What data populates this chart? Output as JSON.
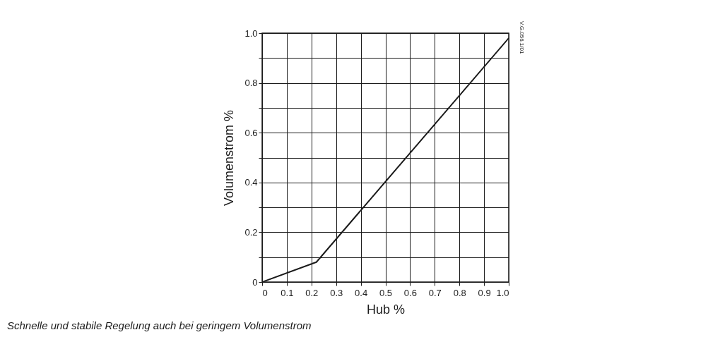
{
  "chart_data": {
    "type": "line",
    "xlabel": "Hub %",
    "ylabel": "Volumenstrom %",
    "x": [
      0,
      0.22,
      1.0
    ],
    "series": [
      {
        "color": "#1a1a1a",
        "values": [
          0,
          0.08,
          0.98
        ]
      }
    ],
    "xlim": [
      0,
      1
    ],
    "ylim": [
      0,
      1
    ],
    "xticks": [
      0,
      0.1,
      0.2,
      0.3,
      0.4,
      0.5,
      0.6,
      0.7,
      0.8,
      0.9,
      {
        "value": 1,
        "label": "1.0"
      }
    ],
    "yticks": [
      0,
      {
        "value": 0.1,
        "label": null
      },
      0.2,
      {
        "value": 0.3,
        "label": null
      },
      0.4,
      {
        "value": 0.5,
        "label": null
      },
      0.6,
      {
        "value": 0.7,
        "label": null
      },
      0.8,
      {
        "value": 0.9,
        "label": null
      },
      {
        "value": 1,
        "label": "1.0"
      }
    ],
    "grid": true,
    "marker": "none",
    "line_style": "solid",
    "annotations": [
      "V.G.056.1/01",
      "Schnelle und stabile Regelung auch bei geringem Volumenstrom"
    ]
  }
}
